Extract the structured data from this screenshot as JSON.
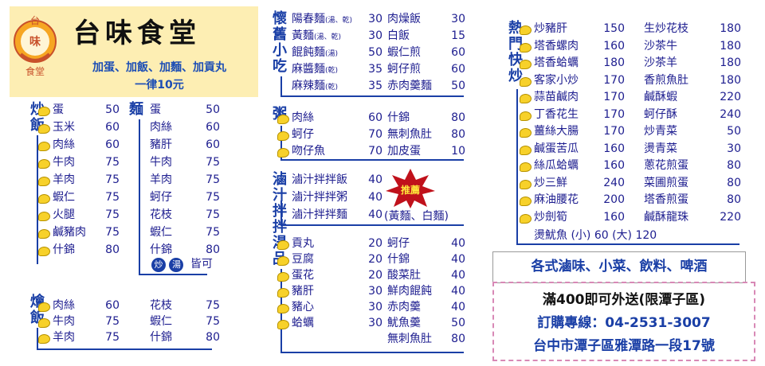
{
  "header": {
    "logo_top": "台",
    "logo_mid": "味",
    "logo_bottom": "食堂",
    "title": "台味食堂",
    "addon_line1": "加蛋、加飯、加麵、加貢丸",
    "addon_line2": "一律10元"
  },
  "fried_rice": {
    "label": "炒飯",
    "items": [
      {
        "name": "蛋",
        "price": "50"
      },
      {
        "name": "玉米",
        "price": "60"
      },
      {
        "name": "肉絲",
        "price": "60"
      },
      {
        "name": "牛肉",
        "price": "75"
      },
      {
        "name": "羊肉",
        "price": "75"
      },
      {
        "name": "蝦仁",
        "price": "75"
      },
      {
        "name": "火腿",
        "price": "75"
      },
      {
        "name": "鹹豬肉",
        "price": "75"
      },
      {
        "name": "什錦",
        "price": "80"
      }
    ]
  },
  "noodles": {
    "label": "麵",
    "items": [
      {
        "name": "蛋",
        "price": "50"
      },
      {
        "name": "肉絲",
        "price": "60"
      },
      {
        "name": "豬肝",
        "price": "60"
      },
      {
        "name": "牛肉",
        "price": "75"
      },
      {
        "name": "羊肉",
        "price": "75"
      },
      {
        "name": "蚵仔",
        "price": "75"
      },
      {
        "name": "花枝",
        "price": "75"
      },
      {
        "name": "蝦仁",
        "price": "75"
      },
      {
        "name": "什錦",
        "price": "80"
      }
    ],
    "note_fry": "炒",
    "note_soup": "湯",
    "note_text": "皆可"
  },
  "stew_rice": {
    "label": "燴飯",
    "left": [
      {
        "name": "肉絲",
        "price": "60"
      },
      {
        "name": "牛肉",
        "price": "75"
      },
      {
        "name": "羊肉",
        "price": "75"
      }
    ],
    "right": [
      {
        "name": "花枝",
        "price": "75"
      },
      {
        "name": "蝦仁",
        "price": "75"
      },
      {
        "name": "什錦",
        "price": "80"
      }
    ]
  },
  "nostalgic": {
    "label": "懷舊小吃",
    "left": [
      {
        "name": "陽春麵",
        "sub": "(湯、乾)",
        "price": "30"
      },
      {
        "name": "黃麵",
        "sub": "(湯、乾)",
        "price": "30"
      },
      {
        "name": "餛飩麵",
        "sub": "(湯)",
        "price": "50"
      },
      {
        "name": "麻醬麵",
        "sub": "(乾)",
        "price": "35"
      },
      {
        "name": "麻辣麵",
        "sub": "(乾)",
        "price": "35"
      }
    ],
    "right": [
      {
        "name": "肉燥飯",
        "price": "30"
      },
      {
        "name": "白飯",
        "price": "15"
      },
      {
        "name": "蝦仁煎",
        "price": "60"
      },
      {
        "name": "蚵仔煎",
        "price": "60"
      },
      {
        "name": "赤肉羹麵",
        "price": "50"
      }
    ]
  },
  "congee": {
    "label": "粥",
    "left": [
      {
        "name": "肉絲",
        "price": "60"
      },
      {
        "name": "蚵仔",
        "price": "70"
      },
      {
        "name": "吻仔魚",
        "price": "70"
      }
    ],
    "right": [
      {
        "name": "什錦",
        "price": "80"
      },
      {
        "name": "無刺魚肚",
        "price": "80"
      },
      {
        "name": "加皮蛋",
        "price": "10"
      }
    ]
  },
  "braised": {
    "label": "滷汁拌拌",
    "items": [
      {
        "name": "滷汁拌拌飯",
        "price": "40"
      },
      {
        "name": "滷汁拌拌粥",
        "price": "40"
      },
      {
        "name": "滷汁拌拌麵",
        "price": "40"
      }
    ],
    "noodle_note": "(黃麵、白麵)",
    "recommend": "推薦"
  },
  "soups": {
    "label": "湯品",
    "left": [
      {
        "name": "貢丸",
        "price": "20"
      },
      {
        "name": "豆腐",
        "price": "20"
      },
      {
        "name": "蛋花",
        "price": "20"
      },
      {
        "name": "豬肝",
        "price": "30"
      },
      {
        "name": "豬心",
        "price": "30"
      },
      {
        "name": "蛤蠣",
        "price": "30"
      }
    ],
    "right": [
      {
        "name": "蚵仔",
        "price": "40"
      },
      {
        "name": "什錦",
        "price": "40"
      },
      {
        "name": "酸菜肚",
        "price": "40"
      },
      {
        "name": "鮮肉餛飩",
        "price": "40"
      },
      {
        "name": "赤肉羹",
        "price": "40"
      },
      {
        "name": "魷魚羹",
        "price": "50"
      },
      {
        "name": "無刺魚肚",
        "price": "80"
      }
    ]
  },
  "hot_stirfry": {
    "label": "熱門快炒",
    "left": [
      {
        "name": "炒豬肝",
        "price": "150"
      },
      {
        "name": "塔香螺肉",
        "price": "160"
      },
      {
        "name": "塔香蛤蠣",
        "price": "180"
      },
      {
        "name": "客家小炒",
        "price": "170"
      },
      {
        "name": "蒜苗鹹肉",
        "price": "170"
      },
      {
        "name": "丁香花生",
        "price": "170"
      },
      {
        "name": "薑絲大腸",
        "price": "170"
      },
      {
        "name": "鹹蛋苦瓜",
        "price": "160"
      },
      {
        "name": "絲瓜蛤蠣",
        "price": "160"
      },
      {
        "name": "炒三鮮",
        "price": "240"
      },
      {
        "name": "麻油腰花",
        "price": "200"
      },
      {
        "name": "炒劍筍",
        "price": "160"
      }
    ],
    "right": [
      {
        "name": "生炒花枝",
        "price": "180"
      },
      {
        "name": "沙茶牛",
        "price": "180"
      },
      {
        "name": "沙茶羊",
        "price": "180"
      },
      {
        "name": "香煎魚肚",
        "price": "180"
      },
      {
        "name": "鹹酥蝦",
        "price": "220"
      },
      {
        "name": "蚵仔酥",
        "price": "240"
      },
      {
        "name": "炒青菜",
        "price": "50"
      },
      {
        "name": "燙青菜",
        "price": "30"
      },
      {
        "name": "蔥花煎蛋",
        "price": "80"
      },
      {
        "name": "菜圃煎蛋",
        "price": "80"
      },
      {
        "name": "塔香煎蛋",
        "price": "80"
      },
      {
        "name": "鹹酥龍珠",
        "price": "220"
      }
    ],
    "squid": "燙魷魚 (小) 60 (大) 120"
  },
  "banner": "各式滷味、小菜、飲料、啤酒",
  "info": {
    "delivery": "滿400即可外送(限潭子區)",
    "phone": "訂購專線：04-2531-3007",
    "address": "台中市潭子區雅潭路一段17號"
  },
  "colors": {
    "accent": "#1a3fa6",
    "price": "#1d1d8f",
    "header_bg": "#fdeeb3",
    "recommend": "#c0111b",
    "blob": "#f7d12a"
  }
}
